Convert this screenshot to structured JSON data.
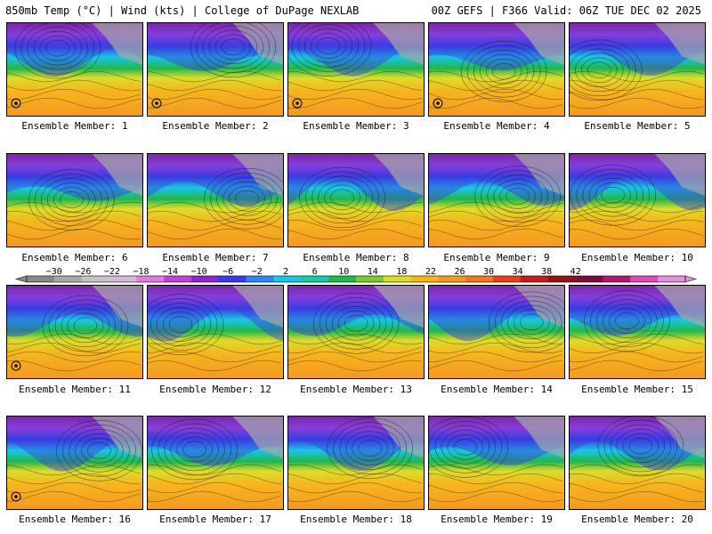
{
  "header": {
    "title_left": "850mb Temp (°C) | Wind (kts) | College of DuPage NEXLAB",
    "title_right": "00Z GEFS | F366 Valid: 06Z TUE DEC 02 2025"
  },
  "members": [
    "Ensemble Member: 1",
    "Ensemble Member: 2",
    "Ensemble Member: 3",
    "Ensemble Member: 4",
    "Ensemble Member: 5",
    "Ensemble Member: 6",
    "Ensemble Member: 7",
    "Ensemble Member: 8",
    "Ensemble Member: 9",
    "Ensemble Member: 10",
    "Ensemble Member: 11",
    "Ensemble Member: 12",
    "Ensemble Member: 13",
    "Ensemble Member: 14",
    "Ensemble Member: 15",
    "Ensemble Member: 16",
    "Ensemble Member: 17",
    "Ensemble Member: 18",
    "Ensemble Member: 19",
    "Ensemble Member: 20"
  ],
  "colorbar": {
    "ticks": [
      "−30",
      "−26",
      "−22",
      "−18",
      "−14",
      "−10",
      "−6",
      "−2",
      "2",
      "6",
      "10",
      "14",
      "18",
      "22",
      "26",
      "30",
      "34",
      "38",
      "42"
    ],
    "colors": [
      "#8a8a8a",
      "#a8a8a8",
      "#c4c4c4",
      "#d7b9d7",
      "#e27ae2",
      "#c441d7",
      "#8b28c8",
      "#3a3ce0",
      "#2f86f0",
      "#18c6e6",
      "#17c9a4",
      "#23b64a",
      "#7ac834",
      "#dedc2a",
      "#f6b51f",
      "#f39720",
      "#f2761c",
      "#e2421c",
      "#c01d1d",
      "#8f1418",
      "#7a0f3e",
      "#b01775",
      "#d84fbb",
      "#e690dc"
    ]
  },
  "icons": {
    "cyclone": "hurricane-symbol-icon"
  }
}
